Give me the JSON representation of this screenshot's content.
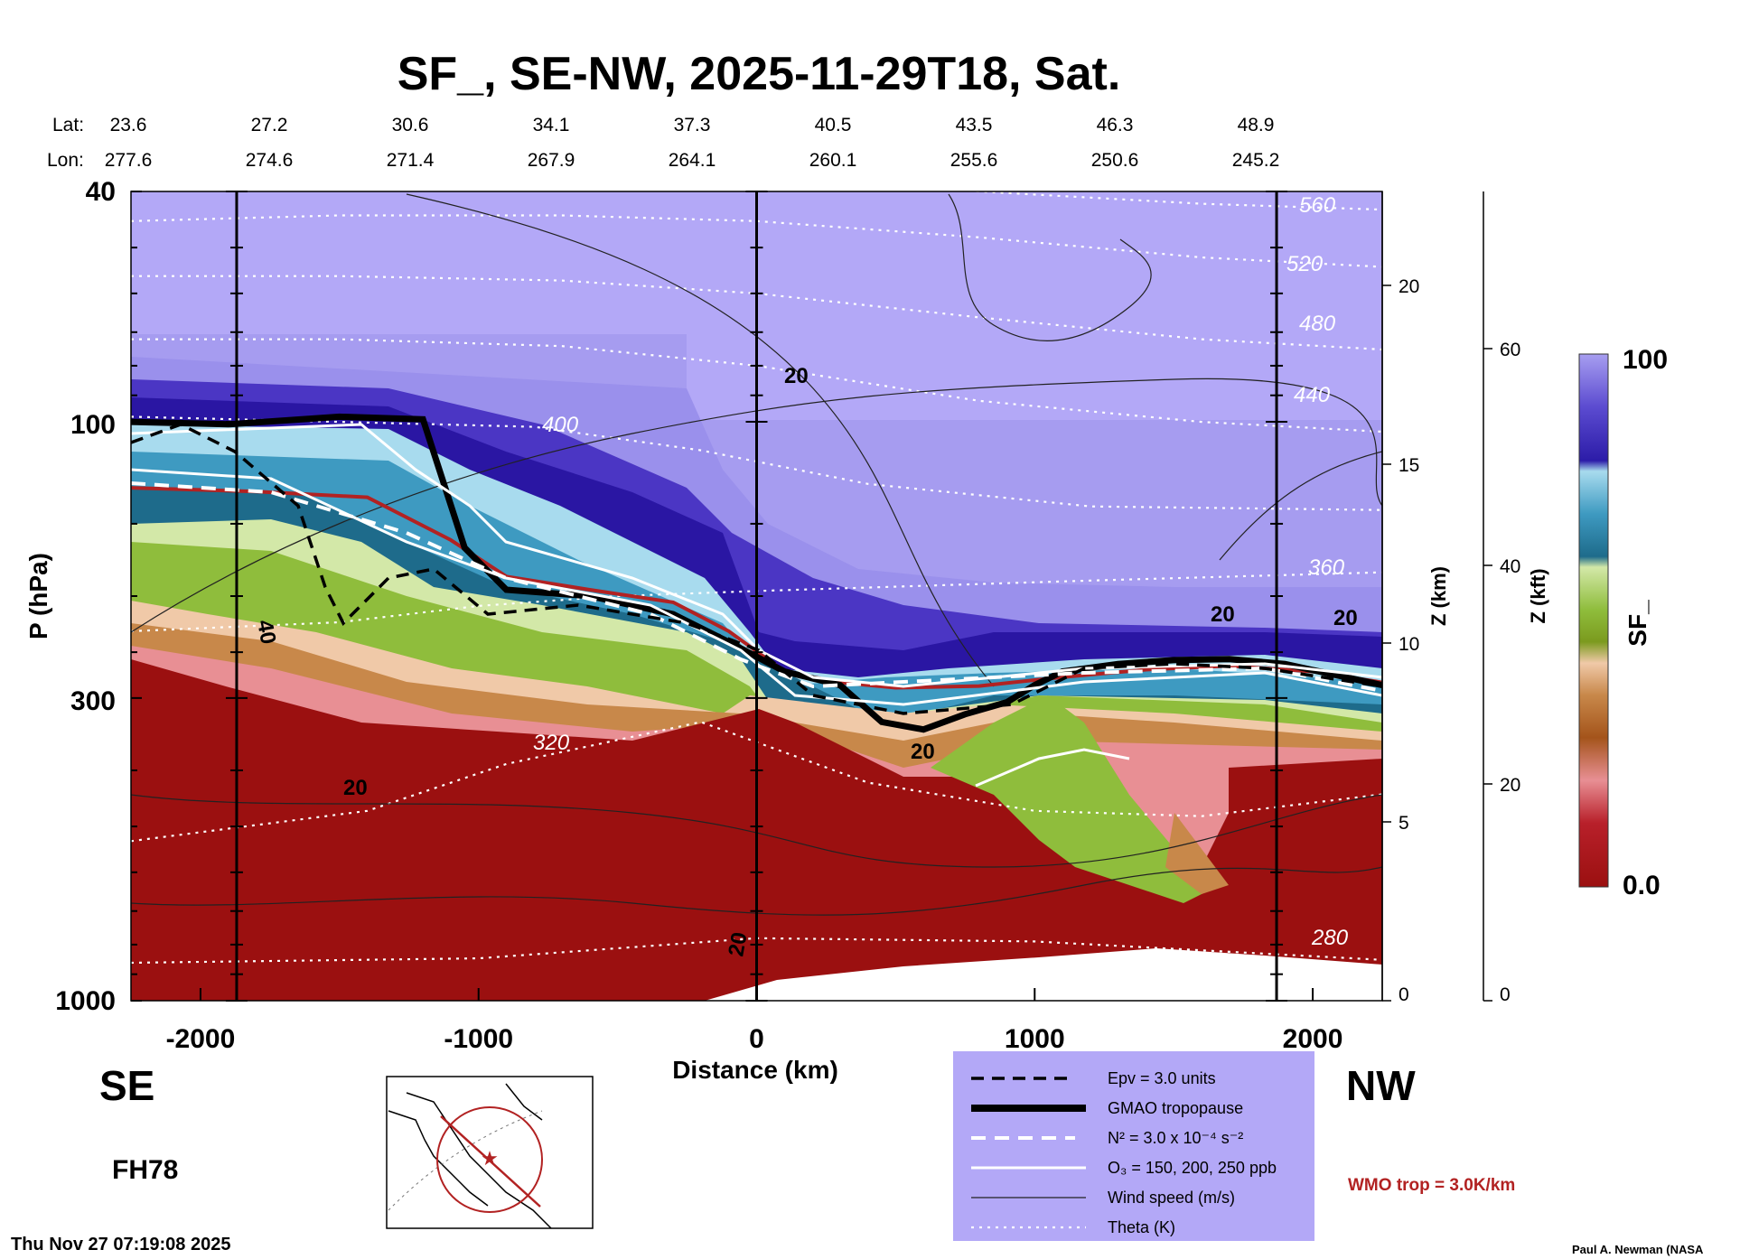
{
  "title": "SF_, SE-NW, 2025-11-29T18, Sat.",
  "lat_label": "Lat:",
  "lon_label": "Lon:",
  "lat": [
    "23.6",
    "27.2",
    "30.6",
    "34.1",
    "37.3",
    "40.5",
    "43.5",
    "46.3",
    "48.9"
  ],
  "lon": [
    "277.6",
    "274.6",
    "271.4",
    "267.9",
    "264.1",
    "260.1",
    "255.6",
    "250.6",
    "245.2"
  ],
  "direction_left": "SE",
  "direction_right": "NW",
  "forecast_hour": "FH78",
  "timestamp": "Thu Nov 27 07:19:08 2025",
  "credit": "Paul A. Newman (NASA",
  "wmo_label": "WMO trop = 3.0K/km",
  "colors": {
    "background_panel": "#b3a8f7",
    "wmo": "#b22222",
    "low_sf": "#9b1010",
    "high_sf": "#b3a8f7"
  },
  "legend": [
    {
      "label": "Epv = 3.0 units",
      "style": "dashed-black"
    },
    {
      "label": "GMAO tropopause",
      "style": "thick-black"
    },
    {
      "label": "N² = 3.0 x 10⁻⁴ s⁻²",
      "style": "dashed-white"
    },
    {
      "label": "O₃ = 150, 200, 250 ppb",
      "style": "solid-white"
    },
    {
      "label": "Wind speed (m/s)",
      "style": "thin-black"
    },
    {
      "label": "Theta (K)",
      "style": "dotted-white"
    }
  ],
  "chart_data": {
    "type": "heatmap",
    "variable": "SF_",
    "title": "SF_, SE-NW, 2025-11-29T18, Sat.",
    "xlabel": "Distance (km)",
    "ylabel": "P (hPa)",
    "z_km_label": "Z (km)",
    "z_kft_label": "Z (kft)",
    "colorbar_label": "SF_",
    "xlim": [
      -2250,
      2250
    ],
    "ylim": [
      1000,
      40
    ],
    "y_scale": "log",
    "x_ticks": [
      -2000,
      -1000,
      0,
      1000,
      2000
    ],
    "x_tick_labels": [
      "-2000",
      "-1000",
      "0",
      "1000",
      "2000"
    ],
    "y_ticks": [
      40,
      100,
      300,
      1000
    ],
    "y_tick_labels": [
      "40",
      "100",
      "300",
      "1000"
    ],
    "z_km_ticks": [
      0,
      5,
      10,
      15,
      20
    ],
    "z_km_tick_labels": [
      "0",
      "5",
      "10",
      "15",
      "20"
    ],
    "z_kft_ticks": [
      0,
      20,
      40,
      60
    ],
    "z_kft_tick_labels": [
      "0",
      "20",
      "40",
      "60"
    ],
    "colorbar_range": [
      0.0,
      100
    ],
    "colorbar_tick_labels": [
      "0.0",
      "100"
    ],
    "vertical_lines_km": [
      -1870,
      0,
      1870
    ],
    "tropopause_hpa": {
      "x": [
        -2250,
        -1900,
        -1500,
        -1200,
        -1050,
        -900,
        -600,
        -300,
        -100,
        100,
        300,
        450,
        600,
        750,
        900,
        1000,
        1100,
        1300,
        1500,
        1700,
        1900,
        2100,
        2250
      ],
      "p": [
        100,
        101,
        98,
        99,
        165,
        195,
        200,
        215,
        240,
        270,
        285,
        330,
        340,
        320,
        305,
        285,
        270,
        262,
        258,
        257,
        262,
        275,
        285
      ]
    },
    "wmo_tropopause_hpa": {
      "x": [
        -2250,
        -1800,
        -1400,
        -1100,
        -900,
        -600,
        -300,
        -100,
        100,
        300,
        500,
        800,
        1100,
        1400,
        1700,
        2000,
        2250
      ],
      "p": [
        130,
        132,
        135,
        160,
        185,
        195,
        205,
        230,
        270,
        282,
        288,
        286,
        276,
        268,
        264,
        270,
        282
      ]
    },
    "theta_lines_hpa": [
      {
        "level": "280",
        "x": [
          -2250,
          -1000,
          0,
          1000,
          2250
        ],
        "p": [
          860,
          845,
          780,
          790,
          850
        ]
      },
      {
        "level": "320",
        "x": [
          -2250,
          -1400,
          -900,
          -200,
          400,
          1000,
          1600,
          2250
        ],
        "p": [
          530,
          470,
          390,
          330,
          420,
          470,
          480,
          440
        ]
      },
      {
        "level": "360",
        "x": [
          -2250,
          -1500,
          -1000,
          -500,
          0,
          600,
          1200,
          2250
        ],
        "p": [
          230,
          222,
          208,
          200,
          196,
          192,
          188,
          182
        ]
      },
      {
        "level": "400",
        "x": [
          -2250,
          -1500,
          -800,
          -200,
          400,
          1200,
          2250
        ],
        "p": [
          98,
          100,
          102,
          112,
          128,
          140,
          142
        ]
      },
      {
        "level": "440",
        "x": [
          -2250,
          -1500,
          -700,
          0,
          800,
          1600,
          2250
        ],
        "p": [
          72,
          72,
          74,
          80,
          92,
          100,
          104
        ]
      },
      {
        "level": "480",
        "x": [
          -2250,
          -1500,
          -700,
          0,
          800,
          1600,
          2250
        ],
        "p": [
          56,
          56,
          57,
          60,
          66,
          72,
          75
        ]
      },
      {
        "level": "520",
        "x": [
          -2250,
          -1500,
          -700,
          0,
          800,
          1600,
          2250
        ],
        "p": [
          45,
          44,
          44,
          45,
          48,
          52,
          54
        ]
      },
      {
        "level": "560",
        "x": [
          -2250,
          -1500,
          -700,
          0,
          800,
          1600,
          2250
        ],
        "p": [
          38,
          38,
          38,
          38,
          40,
          42,
          43
        ]
      }
    ],
    "theta_labels": [
      "560",
      "520",
      "480",
      "440",
      "400",
      "360",
      "320",
      "280"
    ],
    "wind_speed_labels": [
      "20",
      "20",
      "20",
      "40",
      "20",
      "20",
      "20"
    ]
  }
}
